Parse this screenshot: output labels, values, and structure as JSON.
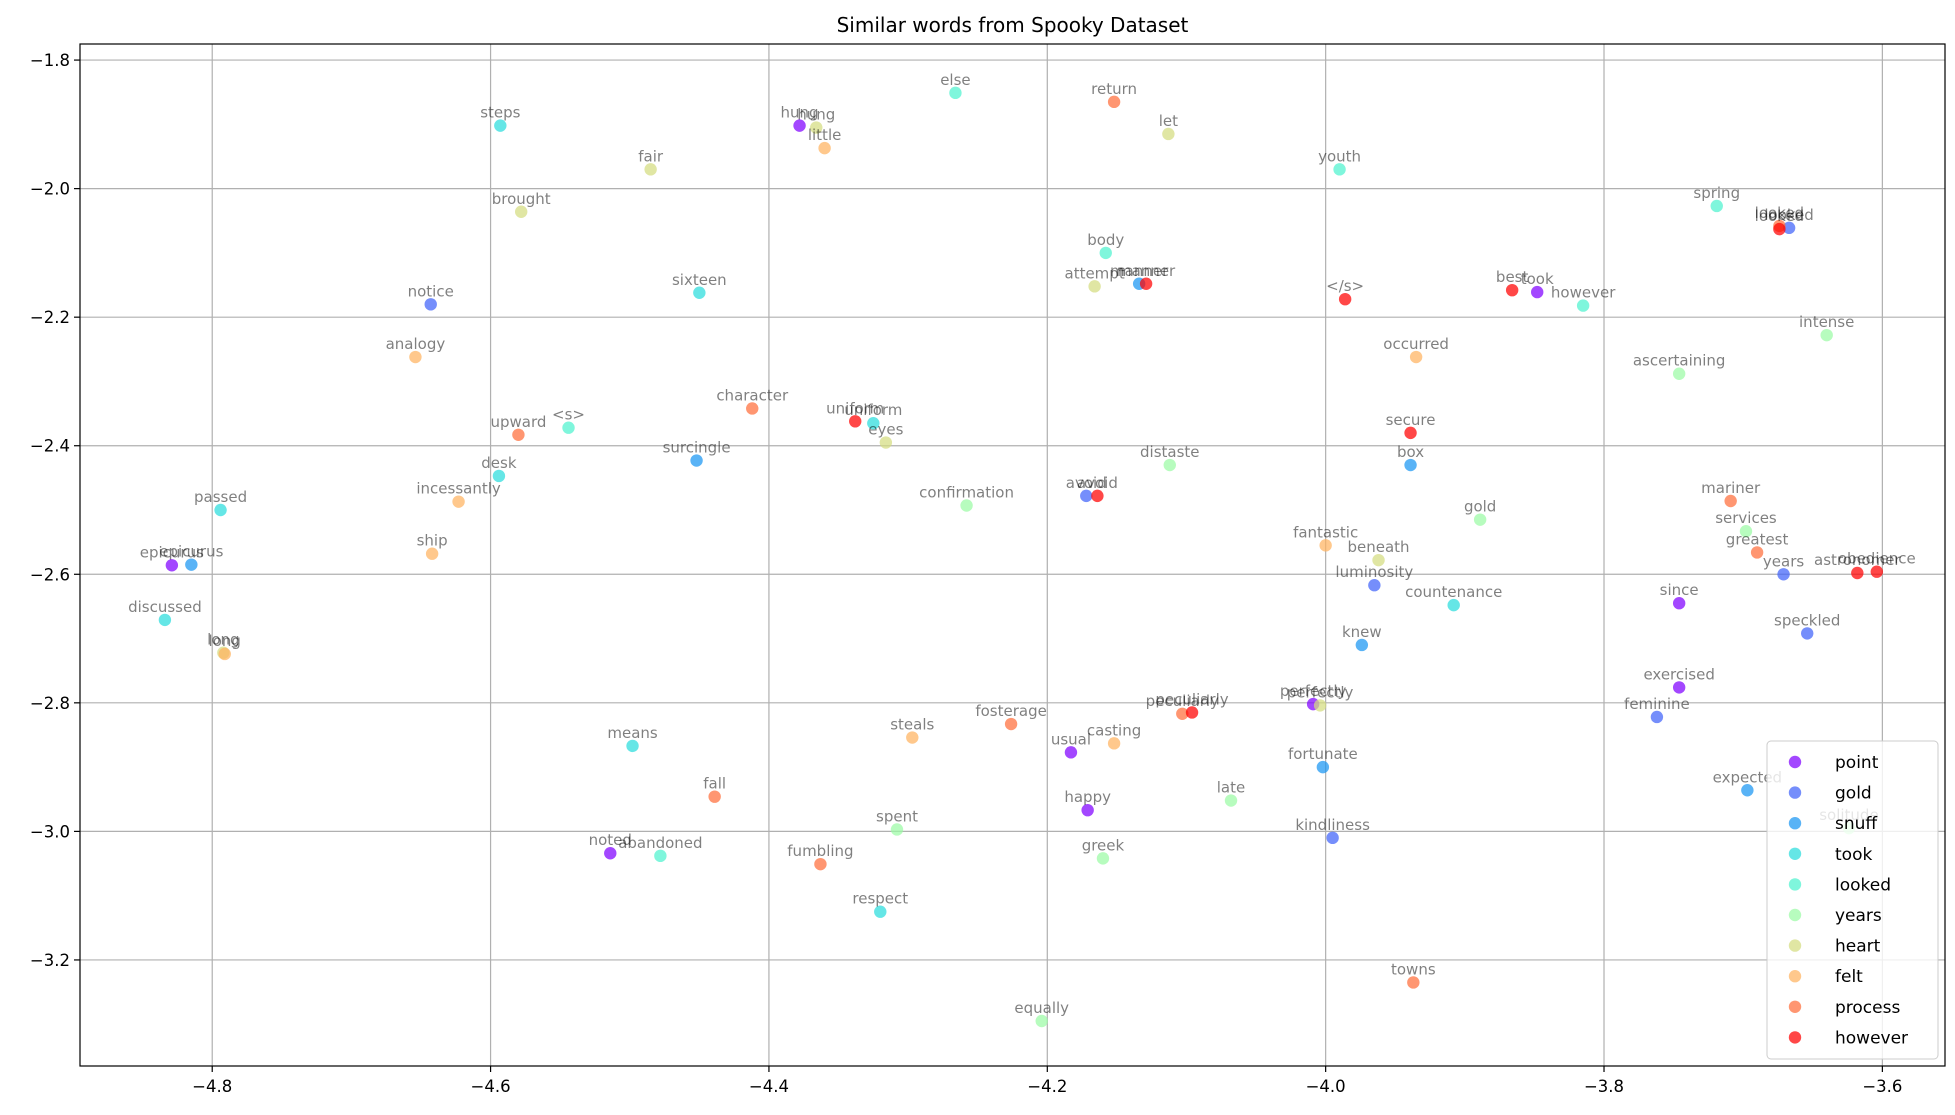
{
  "chart_data": {
    "type": "scatter",
    "title": "Similar words from Spooky Dataset",
    "xlabel": "",
    "ylabel": "",
    "xlim": [
      -4.895,
      -3.555
    ],
    "ylim": [
      -3.365,
      -1.775
    ],
    "x_ticks": [
      -4.8,
      -4.6,
      -4.4,
      -4.2,
      -4.0,
      -3.8,
      -3.6
    ],
    "y_ticks": [
      -1.8,
      -2.0,
      -2.2,
      -2.4,
      -2.6,
      -2.8,
      -3.0,
      -3.2
    ],
    "x_tick_labels": [
      "−4.8",
      "−4.6",
      "−4.4",
      "−4.2",
      "−4.0",
      "−3.8",
      "−3.6"
    ],
    "y_tick_labels": [
      "−1.8",
      "−2.0",
      "−2.2",
      "−2.4",
      "−2.6",
      "−2.8",
      "−3.0",
      "−3.2"
    ],
    "grid": true,
    "legend_position": "bottom-right",
    "series": [
      {
        "name": "point",
        "color": "#8000ff",
        "points": [
          {
            "x": -4.378,
            "y": -1.902,
            "label": "hung"
          },
          {
            "x": -4.829,
            "y": -2.586,
            "label": "epicurus"
          },
          {
            "x": -4.514,
            "y": -3.034,
            "label": "noted"
          },
          {
            "x": -4.183,
            "y": -2.877,
            "label": "usual"
          },
          {
            "x": -4.171,
            "y": -2.967,
            "label": "happy"
          },
          {
            "x": -4.009,
            "y": -2.802,
            "label": "perfectly"
          },
          {
            "x": -3.848,
            "y": -2.161,
            "label": "took"
          },
          {
            "x": -3.746,
            "y": -2.645,
            "label": "since"
          },
          {
            "x": -3.746,
            "y": -2.776,
            "label": "exercised"
          }
        ]
      },
      {
        "name": "gold",
        "color": "#4062fa",
        "points": [
          {
            "x": -4.643,
            "y": -2.18,
            "label": "notice"
          },
          {
            "x": -4.172,
            "y": -2.478,
            "label": "avoid"
          },
          {
            "x": -3.995,
            "y": -3.01,
            "label": "kindliness"
          },
          {
            "x": -3.965,
            "y": -2.617,
            "label": "luminosity"
          },
          {
            "x": -3.762,
            "y": -2.822,
            "label": "feminine"
          },
          {
            "x": -3.671,
            "y": -2.6,
            "label": "years"
          },
          {
            "x": -3.667,
            "y": -2.061,
            "label": "looked"
          },
          {
            "x": -3.654,
            "y": -2.692,
            "label": "speckled"
          }
        ]
      },
      {
        "name": "snuff",
        "color": "#1996f3",
        "points": [
          {
            "x": -4.815,
            "y": -2.585,
            "label": "epicurus"
          },
          {
            "x": -4.452,
            "y": -2.423,
            "label": "surcingle"
          },
          {
            "x": -4.134,
            "y": -2.148,
            "label": "manner"
          },
          {
            "x": -4.002,
            "y": -2.9,
            "label": "fortunate"
          },
          {
            "x": -3.974,
            "y": -2.71,
            "label": "knew"
          },
          {
            "x": -3.939,
            "y": -2.43,
            "label": "box"
          },
          {
            "x": -3.697,
            "y": -2.936,
            "label": "expected"
          }
        ]
      },
      {
        "name": "took",
        "color": "#2adddd",
        "points": [
          {
            "x": -4.593,
            "y": -1.902,
            "label": "steps"
          },
          {
            "x": -4.594,
            "y": -2.447,
            "label": "desk"
          },
          {
            "x": -4.45,
            "y": -2.162,
            "label": "sixteen"
          },
          {
            "x": -4.834,
            "y": -2.671,
            "label": "discussed"
          },
          {
            "x": -4.794,
            "y": -2.5,
            "label": "passed"
          },
          {
            "x": -4.498,
            "y": -2.867,
            "label": "means"
          },
          {
            "x": -4.325,
            "y": -2.365,
            "label": "uniform"
          },
          {
            "x": -4.32,
            "y": -3.125,
            "label": "respect"
          },
          {
            "x": -3.908,
            "y": -2.648,
            "label": "countenance"
          }
        ]
      },
      {
        "name": "looked",
        "color": "#4df3ce",
        "points": [
          {
            "x": -4.266,
            "y": -1.851,
            "label": "else"
          },
          {
            "x": -4.544,
            "y": -2.372,
            "label": "<s>"
          },
          {
            "x": -4.478,
            "y": -3.038,
            "label": "abandoned"
          },
          {
            "x": -4.158,
            "y": -2.1,
            "label": "body"
          },
          {
            "x": -3.99,
            "y": -1.97,
            "label": "youth"
          },
          {
            "x": -3.815,
            "y": -2.182,
            "label": "however"
          },
          {
            "x": -3.719,
            "y": -2.027,
            "label": "spring"
          }
        ]
      },
      {
        "name": "years",
        "color": "#9bfba5",
        "points": [
          {
            "x": -4.308,
            "y": -2.997,
            "label": "spent"
          },
          {
            "x": -4.258,
            "y": -2.493,
            "label": "confirmation"
          },
          {
            "x": -4.204,
            "y": -3.295,
            "label": "equally"
          },
          {
            "x": -4.16,
            "y": -3.042,
            "label": "greek"
          },
          {
            "x": -4.112,
            "y": -2.43,
            "label": "distaste"
          },
          {
            "x": -4.068,
            "y": -2.952,
            "label": "late"
          },
          {
            "x": -3.889,
            "y": -2.515,
            "label": "gold"
          },
          {
            "x": -3.746,
            "y": -2.288,
            "label": "ascertaining"
          },
          {
            "x": -3.698,
            "y": -2.533,
            "label": "services"
          },
          {
            "x": -3.64,
            "y": -2.228,
            "label": "intense"
          },
          {
            "x": -3.624,
            "y": -2.995,
            "label": "solitude"
          }
        ]
      },
      {
        "name": "heart",
        "color": "#d4dd80",
        "points": [
          {
            "x": -4.485,
            "y": -1.97,
            "label": "fair"
          },
          {
            "x": -4.578,
            "y": -2.036,
            "label": "brought"
          },
          {
            "x": -4.366,
            "y": -1.905,
            "label": "hung"
          },
          {
            "x": -4.316,
            "y": -2.395,
            "label": "eyes"
          },
          {
            "x": -4.166,
            "y": -2.152,
            "label": "attempt"
          },
          {
            "x": -4.113,
            "y": -1.915,
            "label": "let"
          },
          {
            "x": -4.004,
            "y": -2.804,
            "label": "perfectly"
          },
          {
            "x": -3.962,
            "y": -2.578,
            "label": "beneath"
          },
          {
            "x": -4.792,
            "y": -2.722,
            "label": "long"
          }
        ]
      },
      {
        "name": "felt",
        "color": "#ffb360",
        "points": [
          {
            "x": -4.654,
            "y": -2.262,
            "label": "analogy"
          },
          {
            "x": -4.623,
            "y": -2.487,
            "label": "incessantly"
          },
          {
            "x": -4.642,
            "y": -2.568,
            "label": "ship"
          },
          {
            "x": -4.36,
            "y": -1.937,
            "label": "little"
          },
          {
            "x": -4.297,
            "y": -2.854,
            "label": "steals"
          },
          {
            "x": -4.152,
            "y": -2.863,
            "label": "casting"
          },
          {
            "x": -4.0,
            "y": -2.555,
            "label": "fantastic"
          },
          {
            "x": -3.935,
            "y": -2.262,
            "label": "occurred"
          },
          {
            "x": -4.791,
            "y": -2.724,
            "label": "long"
          }
        ]
      },
      {
        "name": "process",
        "color": "#ff6e3a",
        "points": [
          {
            "x": -4.58,
            "y": -2.383,
            "label": "upward"
          },
          {
            "x": -4.412,
            "y": -2.342,
            "label": "character"
          },
          {
            "x": -4.439,
            "y": -2.946,
            "label": "fall"
          },
          {
            "x": -4.363,
            "y": -3.051,
            "label": "fumbling"
          },
          {
            "x": -4.226,
            "y": -2.833,
            "label": "fosterage"
          },
          {
            "x": -4.152,
            "y": -1.865,
            "label": "return"
          },
          {
            "x": -4.103,
            "y": -2.817,
            "label": "peculiarly"
          },
          {
            "x": -3.937,
            "y": -3.235,
            "label": "towns"
          },
          {
            "x": -3.709,
            "y": -2.486,
            "label": "mariner"
          },
          {
            "x": -3.69,
            "y": -2.566,
            "label": "greatest"
          },
          {
            "x": -3.674,
            "y": -2.058,
            "label": "looked"
          }
        ]
      },
      {
        "name": "however",
        "color": "#ff0000",
        "points": [
          {
            "x": -4.338,
            "y": -2.362,
            "label": "uniform"
          },
          {
            "x": -4.164,
            "y": -2.478,
            "label": "avoid"
          },
          {
            "x": -4.129,
            "y": -2.148,
            "label": "manner"
          },
          {
            "x": -4.096,
            "y": -2.815,
            "label": "peculiarly"
          },
          {
            "x": -3.986,
            "y": -2.172,
            "label": "</s>"
          },
          {
            "x": -3.939,
            "y": -2.38,
            "label": "secure"
          },
          {
            "x": -3.866,
            "y": -2.158,
            "label": "best"
          },
          {
            "x": -3.674,
            "y": -2.063,
            "label": "looked"
          },
          {
            "x": -3.618,
            "y": -2.598,
            "label": "astronomer"
          },
          {
            "x": -3.604,
            "y": -2.596,
            "label": "obedience"
          }
        ]
      }
    ]
  }
}
